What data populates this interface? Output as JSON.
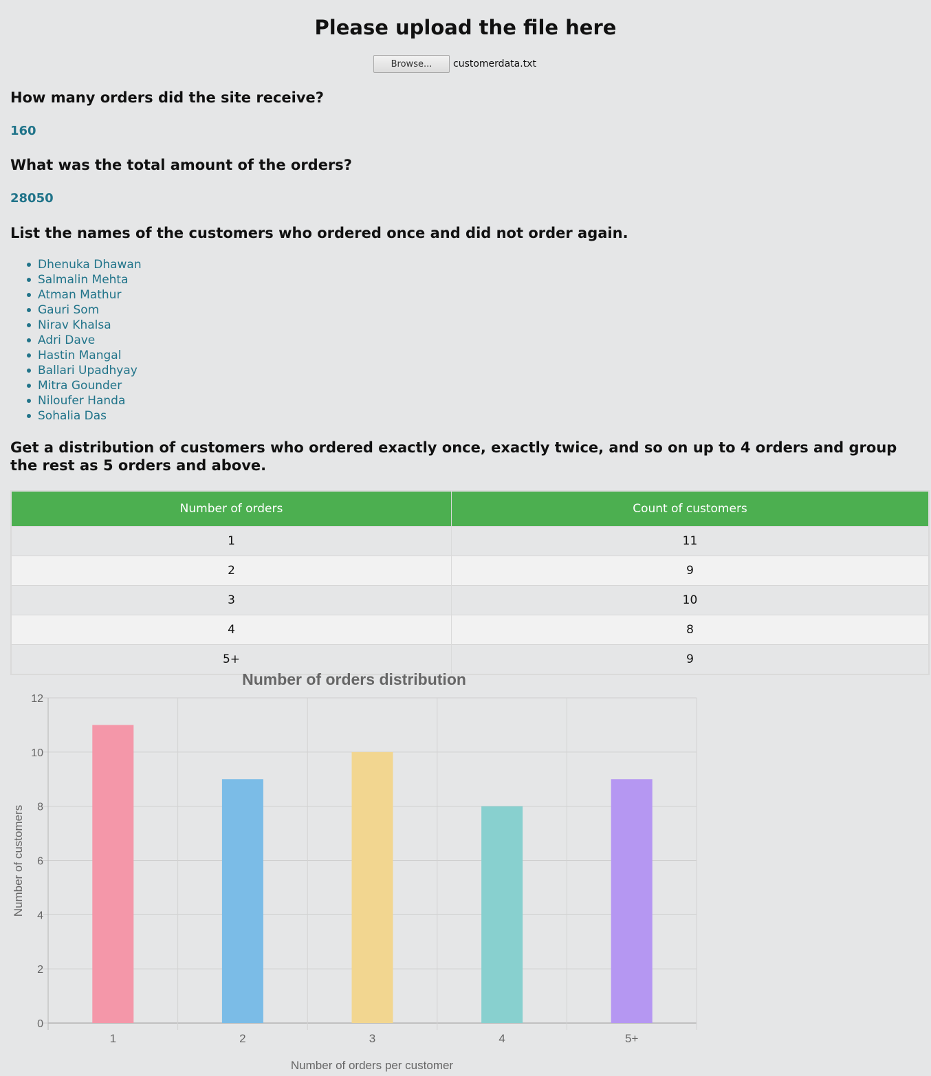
{
  "header": {
    "title": "Please upload the file here",
    "browse_label": "Browse...",
    "file_name": "customerdata.txt"
  },
  "questions": {
    "q1": "How many orders did the site receive?",
    "a1": "160",
    "q2": "What was the total amount of the orders?",
    "a2": "28050",
    "q3": "List the names of the customers who ordered once and did not order again.",
    "q4": "Get a distribution of customers who ordered exactly once, exactly twice, and so on up to 4 orders and group the rest as 5 orders and above."
  },
  "customers": [
    "Dhenuka Dhawan",
    "Salmalin Mehta",
    "Atman Mathur",
    "Gauri Som",
    "Nirav Khalsa",
    "Adri Dave",
    "Hastin Mangal",
    "Ballari Upadhyay",
    "Mitra Gounder",
    "Niloufer Handa",
    "Sohalia Das"
  ],
  "table": {
    "headers": [
      "Number of orders",
      "Count of customers"
    ],
    "rows": [
      [
        "1",
        "11"
      ],
      [
        "2",
        "9"
      ],
      [
        "3",
        "10"
      ],
      [
        "4",
        "8"
      ],
      [
        "5+",
        "9"
      ]
    ]
  },
  "chart_data": {
    "type": "bar",
    "title": "Number of orders distribution",
    "xlabel": "Number of orders per customer",
    "ylabel": "Number of customers",
    "categories": [
      "1",
      "2",
      "3",
      "4",
      "5+"
    ],
    "values": [
      11,
      9,
      10,
      8,
      9
    ],
    "ylim": [
      0,
      12
    ],
    "yticks": [
      0,
      2,
      4,
      6,
      8,
      10,
      12
    ],
    "colors": [
      "#f497a9",
      "#7bbce7",
      "#f2d690",
      "#88d0cf",
      "#b597f2"
    ],
    "grid": true,
    "legend": "none"
  }
}
